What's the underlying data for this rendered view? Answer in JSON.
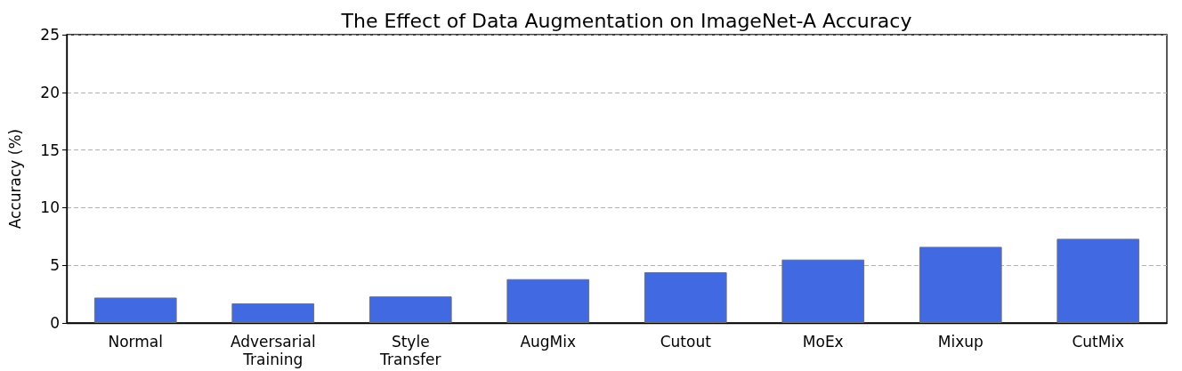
{
  "chart_data": {
    "type": "bar",
    "title": "The Effect of Data Augmentation on ImageNet-A Accuracy",
    "ylabel": "Accuracy (%)",
    "categories": [
      "Normal",
      "Adversarial Training",
      "Style Transfer",
      "AugMix",
      "Cutout",
      "MoEx",
      "Mixup",
      "CutMix"
    ],
    "values": [
      2.2,
      1.7,
      2.3,
      3.8,
      4.4,
      5.5,
      6.6,
      7.3
    ],
    "color": "#4169e1",
    "ylim": [
      0,
      25
    ],
    "yticks": [
      0,
      5,
      10,
      15,
      20,
      25
    ],
    "grid": "y"
  }
}
